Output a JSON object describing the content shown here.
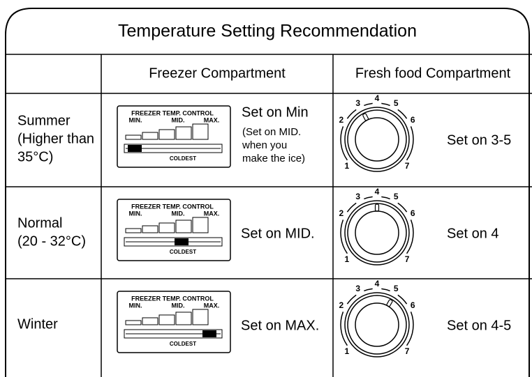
{
  "title": "Temperature Setting Recommendation",
  "header": {
    "freezer": "Freezer Compartment",
    "fresh_food": "Fresh food Compartment"
  },
  "panel": {
    "title": "FREEZER TEMP. CONTROL",
    "min": "MIN.",
    "mid": "MID.",
    "max": "MAX.",
    "coldest": "COLDEST"
  },
  "dial_numbers": [
    "1",
    "2",
    "3",
    "4",
    "5",
    "6",
    "7"
  ],
  "rows": [
    {
      "season": [
        "Summer",
        "(Higher than",
        "35°C)"
      ],
      "freezer_setting": "Set on Min",
      "freezer_note": [
        "(Set on MID.",
        "when you",
        "make the ice)"
      ],
      "fresh_food_setting": "Set on 3-5"
    },
    {
      "season": [
        "Normal",
        "(20 - 32°C)"
      ],
      "freezer_setting": "Set on MID.",
      "fresh_food_setting": "Set on 4"
    },
    {
      "season": [
        "Winter"
      ],
      "freezer_setting": "Set on MAX.",
      "fresh_food_setting": "Set on 4-5"
    }
  ]
}
